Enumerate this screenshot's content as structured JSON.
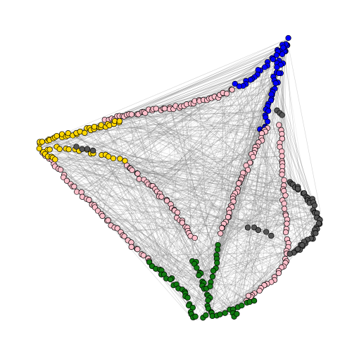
{
  "figure": {
    "kind": "network-graph",
    "background": "#ffffff",
    "edge_color": "#808080",
    "node_outline": "#000000"
  },
  "clusters": [
    {
      "name": "blue",
      "color": "#0000ff"
    },
    {
      "name": "pink",
      "color": "#ffc0cb"
    },
    {
      "name": "gold",
      "color": "#ffd700"
    },
    {
      "name": "dark-gray",
      "color": "#555555"
    },
    {
      "name": "green",
      "color": "#117a11"
    }
  ]
}
